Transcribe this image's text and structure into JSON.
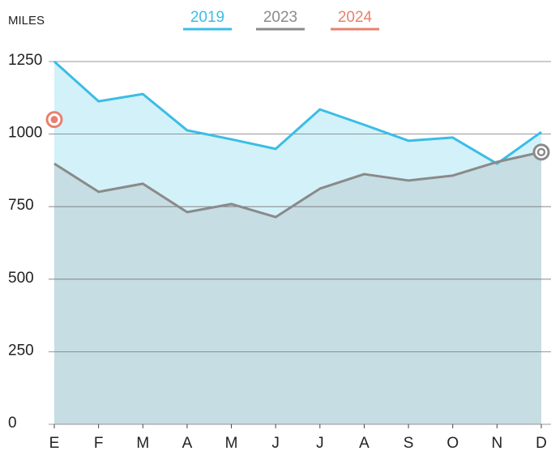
{
  "chart_data": {
    "type": "area",
    "y_label": "MILES",
    "categories": [
      "E",
      "F",
      "M",
      "A",
      "M",
      "J",
      "J",
      "A",
      "S",
      "O",
      "N",
      "D"
    ],
    "series": [
      {
        "name": "2019",
        "color": "#3bbde6",
        "fill": "#d3f1f9",
        "values": [
          1250,
          1113,
          1138,
          1013,
          982,
          949,
          1085,
          1032,
          977,
          988,
          898,
          1007
        ]
      },
      {
        "name": "2023",
        "color": "#8a8a8a",
        "fill": "#c5dde3",
        "values": [
          898,
          801,
          829,
          731,
          759,
          714,
          812,
          862,
          840,
          857,
          904,
          938
        ]
      },
      {
        "name": "2024",
        "color": "#e8806f",
        "values": [
          1050,
          null,
          null,
          null,
          null,
          null,
          null,
          null,
          null,
          null,
          null,
          null
        ]
      }
    ],
    "ylim": [
      0,
      1250
    ],
    "yticks": [
      0,
      250,
      500,
      750,
      1000,
      1250
    ],
    "grid": true
  }
}
